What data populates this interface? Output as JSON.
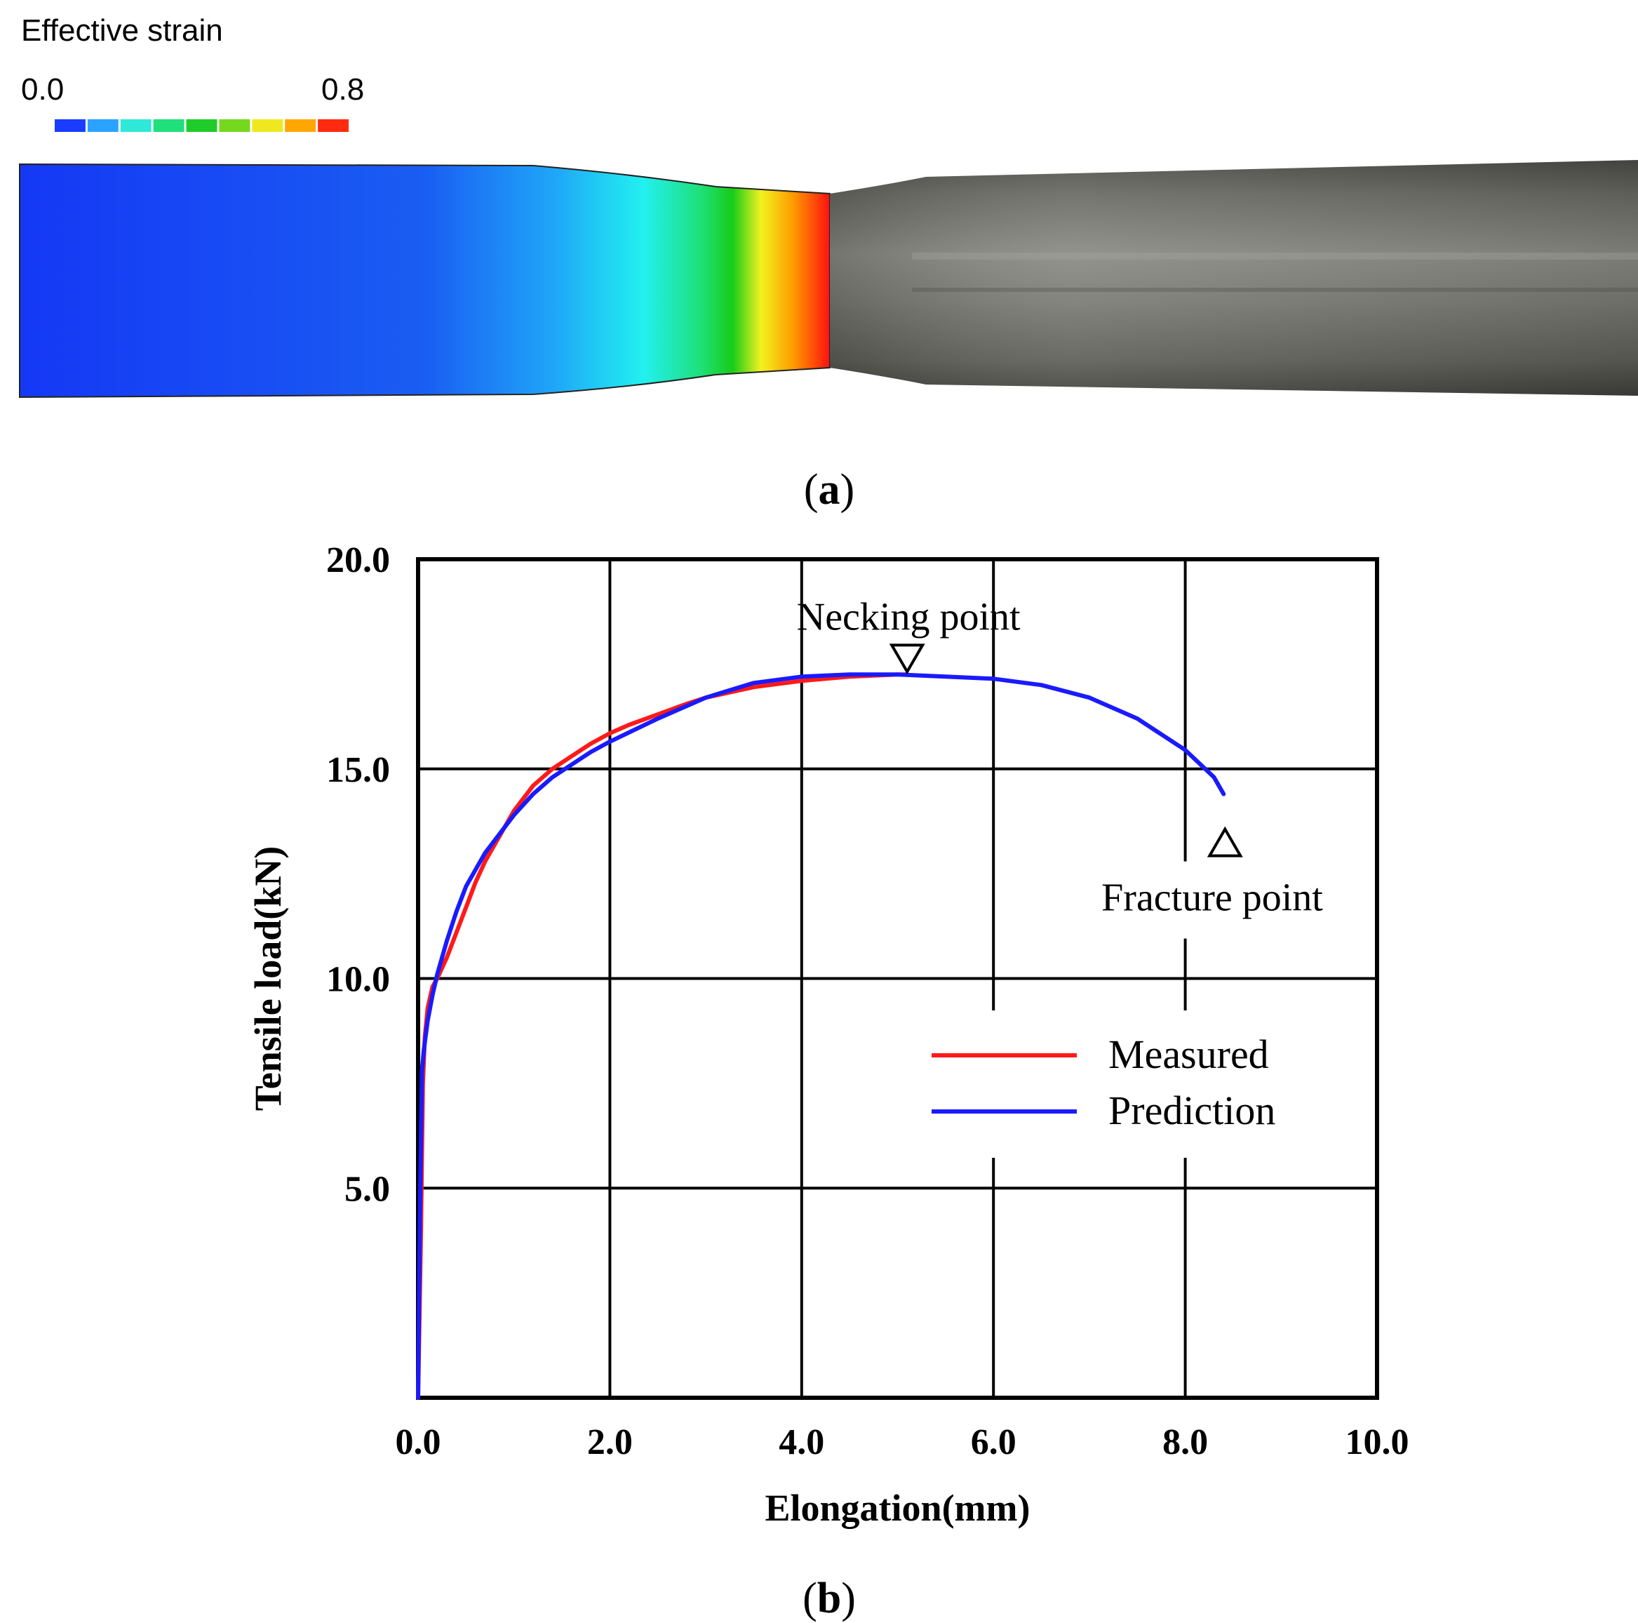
{
  "panel_a": {
    "legend_title": "Effective strain",
    "legend_min": "0.0",
    "legend_max": "0.8",
    "legend_colors": [
      "#1a3cff",
      "#29a3ff",
      "#2ee8d8",
      "#1fe07a",
      "#1fcc2a",
      "#74d81c",
      "#f0e81e",
      "#ffa600",
      "#ff2a10"
    ],
    "caption_open": "(",
    "caption_letter": "a",
    "caption_close": ")"
  },
  "panel_b": {
    "caption_open": "(",
    "caption_letter": "b",
    "caption_close": ")"
  },
  "chart_data": {
    "type": "line",
    "title": "",
    "xlabel": "Elongation(mm)",
    "ylabel": "Tensile load(kN)",
    "xlim": [
      0,
      10
    ],
    "ylim": [
      0,
      20
    ],
    "x_ticks": [
      0,
      2,
      4,
      6,
      8,
      10
    ],
    "x_tick_labels": [
      "0.0",
      "2.0",
      "4.0",
      "6.0",
      "8.0",
      "10.0"
    ],
    "y_ticks": [
      5,
      10,
      15,
      20
    ],
    "y_tick_labels": [
      "5.0",
      "10.0",
      "15.0",
      "20.0"
    ],
    "grid": true,
    "legend_position": "center-right",
    "series": [
      {
        "name": "Measured",
        "color": "#ff1a1a",
        "x": [
          0.0,
          0.03,
          0.05,
          0.07,
          0.1,
          0.15,
          0.2,
          0.3,
          0.4,
          0.5,
          0.6,
          0.7,
          0.8,
          1.0,
          1.2,
          1.4,
          1.6,
          1.8,
          2.0,
          2.2,
          2.5,
          2.8,
          3.0,
          3.5,
          4.0,
          4.5,
          5.0,
          5.1
        ],
        "y": [
          0.0,
          4.0,
          7.5,
          8.6,
          9.3,
          9.8,
          10.0,
          10.5,
          11.1,
          11.7,
          12.3,
          12.8,
          13.2,
          14.0,
          14.6,
          15.0,
          15.3,
          15.6,
          15.85,
          16.05,
          16.3,
          16.55,
          16.7,
          16.95,
          17.1,
          17.2,
          17.25,
          17.25
        ]
      },
      {
        "name": "Prediction",
        "color": "#1a1aff",
        "x": [
          0.0,
          0.02,
          0.04,
          0.06,
          0.1,
          0.15,
          0.2,
          0.3,
          0.4,
          0.5,
          0.6,
          0.7,
          0.8,
          1.0,
          1.2,
          1.4,
          1.6,
          1.8,
          2.0,
          2.5,
          3.0,
          3.5,
          4.0,
          4.5,
          5.0,
          5.5,
          6.0,
          6.5,
          7.0,
          7.5,
          8.0,
          8.3,
          8.4
        ],
        "y": [
          0.0,
          4.5,
          7.8,
          8.3,
          9.0,
          9.6,
          10.1,
          10.9,
          11.6,
          12.2,
          12.6,
          13.0,
          13.3,
          13.9,
          14.4,
          14.8,
          15.1,
          15.4,
          15.65,
          16.2,
          16.7,
          17.05,
          17.2,
          17.25,
          17.25,
          17.2,
          17.15,
          17.0,
          16.7,
          16.2,
          15.45,
          14.8,
          14.4
        ]
      }
    ],
    "annotations": [
      {
        "text": "Necking point",
        "marker": "down-triangle",
        "x": 5.1,
        "y": 17.25
      },
      {
        "text": "Fracture point",
        "marker": "up-triangle",
        "x": 8.4,
        "y": 14.4
      }
    ]
  }
}
